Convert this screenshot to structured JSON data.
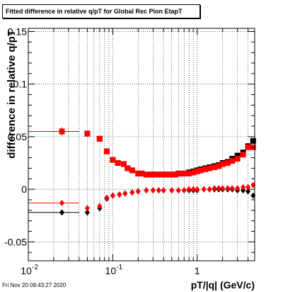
{
  "title": "Fitted difference in relative q/pT for Global Rec Pion EtapT",
  "timestamp": "Fri Nov 20 09:43:27 2020",
  "colors": {
    "black_series": "#000000",
    "red_series": "#ff0000",
    "grid": "#000000"
  },
  "chart_data": {
    "type": "scatter",
    "xlabel": "pT/|q| (GeV/c)",
    "ylabel": "difference in relative q/pT",
    "x_scale": "log",
    "xlim": [
      0.01,
      4.8
    ],
    "ylim": [
      -0.068,
      0.153
    ],
    "grid": true,
    "x_major_ticks": [
      {
        "value": 0.01,
        "label": "10",
        "exp": "-2"
      },
      {
        "value": 0.1,
        "label": "10",
        "exp": "-1"
      },
      {
        "value": 1,
        "label": "1",
        "exp": ""
      }
    ],
    "y_ticks": [
      {
        "value": -0.05,
        "label": "-0.05"
      },
      {
        "value": 0,
        "label": "0"
      },
      {
        "value": 0.05,
        "label": "0.05"
      },
      {
        "value": 0.1,
        "label": "0.1"
      },
      {
        "value": 0.15,
        "label": "0.15"
      }
    ],
    "series": [
      {
        "color": "#000000",
        "marker": "square",
        "points": [
          {
            "x": 0.025,
            "y": 0.055,
            "xlo": 0.01,
            "xhi": 0.04,
            "err": 0.004
          },
          {
            "x": 0.05,
            "y": 0.053
          },
          {
            "x": 0.07,
            "y": 0.048
          },
          {
            "x": 0.085,
            "y": 0.036
          },
          {
            "x": 0.1,
            "y": 0.028
          },
          {
            "x": 0.115,
            "y": 0.025
          },
          {
            "x": 0.135,
            "y": 0.024
          },
          {
            "x": 0.15,
            "y": 0.02
          },
          {
            "x": 0.17,
            "y": 0.018
          },
          {
            "x": 0.2,
            "y": 0.015
          },
          {
            "x": 0.22,
            "y": 0.015
          },
          {
            "x": 0.25,
            "y": 0.014
          },
          {
            "x": 0.28,
            "y": 0.014
          },
          {
            "x": 0.3,
            "y": 0.014
          },
          {
            "x": 0.35,
            "y": 0.014
          },
          {
            "x": 0.4,
            "y": 0.014
          },
          {
            "x": 0.45,
            "y": 0.014
          },
          {
            "x": 0.5,
            "y": 0.014
          },
          {
            "x": 0.55,
            "y": 0.014
          },
          {
            "x": 0.6,
            "y": 0.015
          },
          {
            "x": 0.7,
            "y": 0.015
          },
          {
            "x": 0.8,
            "y": 0.016
          },
          {
            "x": 0.9,
            "y": 0.017
          },
          {
            "x": 1.0,
            "y": 0.018
          },
          {
            "x": 1.1,
            "y": 0.019
          },
          {
            "x": 1.25,
            "y": 0.02
          },
          {
            "x": 1.4,
            "y": 0.021
          },
          {
            "x": 1.6,
            "y": 0.022
          },
          {
            "x": 1.8,
            "y": 0.023
          },
          {
            "x": 2.0,
            "y": 0.025
          },
          {
            "x": 2.3,
            "y": 0.026
          },
          {
            "x": 2.6,
            "y": 0.029
          },
          {
            "x": 3.0,
            "y": 0.032
          },
          {
            "x": 3.5,
            "y": 0.035
          },
          {
            "x": 4.0,
            "y": 0.041
          },
          {
            "x": 4.6,
            "y": 0.046
          }
        ]
      },
      {
        "color": "#ff0000",
        "marker": "square",
        "points": [
          {
            "x": 0.025,
            "y": 0.055,
            "xlo": 0.01,
            "xhi": 0.04,
            "err": 0.004
          },
          {
            "x": 0.05,
            "y": 0.053
          },
          {
            "x": 0.07,
            "y": 0.048
          },
          {
            "x": 0.085,
            "y": 0.036
          },
          {
            "x": 0.1,
            "y": 0.028
          },
          {
            "x": 0.115,
            "y": 0.025
          },
          {
            "x": 0.135,
            "y": 0.024
          },
          {
            "x": 0.15,
            "y": 0.02
          },
          {
            "x": 0.17,
            "y": 0.018
          },
          {
            "x": 0.2,
            "y": 0.015
          },
          {
            "x": 0.22,
            "y": 0.015
          },
          {
            "x": 0.25,
            "y": 0.014
          },
          {
            "x": 0.28,
            "y": 0.014
          },
          {
            "x": 0.3,
            "y": 0.014
          },
          {
            "x": 0.35,
            "y": 0.014
          },
          {
            "x": 0.4,
            "y": 0.014
          },
          {
            "x": 0.45,
            "y": 0.014
          },
          {
            "x": 0.5,
            "y": 0.014
          },
          {
            "x": 0.55,
            "y": 0.014
          },
          {
            "x": 0.6,
            "y": 0.015
          },
          {
            "x": 0.7,
            "y": 0.015
          },
          {
            "x": 0.8,
            "y": 0.015
          },
          {
            "x": 0.9,
            "y": 0.016
          },
          {
            "x": 1.0,
            "y": 0.017
          },
          {
            "x": 1.1,
            "y": 0.018
          },
          {
            "x": 1.25,
            "y": 0.019
          },
          {
            "x": 1.4,
            "y": 0.02
          },
          {
            "x": 1.6,
            "y": 0.021
          },
          {
            "x": 1.8,
            "y": 0.022
          },
          {
            "x": 2.0,
            "y": 0.024
          },
          {
            "x": 2.3,
            "y": 0.025
          },
          {
            "x": 2.6,
            "y": 0.027
          },
          {
            "x": 3.0,
            "y": 0.029
          },
          {
            "x": 3.5,
            "y": 0.033
          },
          {
            "x": 4.0,
            "y": 0.04
          },
          {
            "x": 4.6,
            "y": 0.04
          }
        ]
      },
      {
        "color": "#000000",
        "marker": "diamond",
        "points": [
          {
            "x": 0.025,
            "y": -0.022,
            "xlo": 0.01,
            "xhi": 0.04,
            "err": 0.002
          },
          {
            "x": 0.05,
            "y": -0.022
          },
          {
            "x": 0.07,
            "y": -0.018
          },
          {
            "x": 0.085,
            "y": -0.009
          },
          {
            "x": 0.1,
            "y": -0.006
          },
          {
            "x": 0.12,
            "y": -0.005
          },
          {
            "x": 0.14,
            "y": -0.004
          },
          {
            "x": 0.17,
            "y": -0.003
          },
          {
            "x": 0.2,
            "y": -0.002
          },
          {
            "x": 0.25,
            "y": -0.001
          },
          {
            "x": 0.3,
            "y": -0.001
          },
          {
            "x": 0.35,
            "y": -0.001
          },
          {
            "x": 0.4,
            "y": -0.001
          },
          {
            "x": 0.5,
            "y": -0.001
          },
          {
            "x": 0.6,
            "y": -0.001
          },
          {
            "x": 0.7,
            "y": -0.001
          },
          {
            "x": 0.8,
            "y": -0.001
          },
          {
            "x": 0.9,
            "y": -0.001
          },
          {
            "x": 1.0,
            "y": -0.001
          },
          {
            "x": 1.2,
            "y": 0.0
          },
          {
            "x": 1.4,
            "y": 0.0
          },
          {
            "x": 1.6,
            "y": 0.0
          },
          {
            "x": 1.8,
            "y": 0.0
          },
          {
            "x": 2.0,
            "y": 0.0
          },
          {
            "x": 2.3,
            "y": 0.0
          },
          {
            "x": 2.6,
            "y": 0.0
          },
          {
            "x": 3.0,
            "y": -0.001
          },
          {
            "x": 3.5,
            "y": -0.001
          },
          {
            "x": 4.0,
            "y": -0.002
          },
          {
            "x": 4.6,
            "y": -0.006
          }
        ]
      },
      {
        "color": "#ff0000",
        "marker": "diamond",
        "points": [
          {
            "x": 0.025,
            "y": -0.013,
            "xlo": 0.01,
            "xhi": 0.04,
            "err": 0.002
          },
          {
            "x": 0.05,
            "y": -0.018
          },
          {
            "x": 0.07,
            "y": -0.016
          },
          {
            "x": 0.085,
            "y": -0.008
          },
          {
            "x": 0.1,
            "y": -0.006
          },
          {
            "x": 0.12,
            "y": -0.005
          },
          {
            "x": 0.14,
            "y": -0.004
          },
          {
            "x": 0.17,
            "y": -0.003
          },
          {
            "x": 0.2,
            "y": -0.002
          },
          {
            "x": 0.25,
            "y": -0.001
          },
          {
            "x": 0.3,
            "y": -0.001
          },
          {
            "x": 0.35,
            "y": -0.001
          },
          {
            "x": 0.4,
            "y": -0.001
          },
          {
            "x": 0.5,
            "y": -0.001
          },
          {
            "x": 0.6,
            "y": -0.001
          },
          {
            "x": 0.7,
            "y": -0.001
          },
          {
            "x": 0.8,
            "y": 0.0
          },
          {
            "x": 0.9,
            "y": 0.0
          },
          {
            "x": 1.0,
            "y": 0.0
          },
          {
            "x": 1.2,
            "y": 0.0
          },
          {
            "x": 1.4,
            "y": 0.0
          },
          {
            "x": 1.6,
            "y": 0.001
          },
          {
            "x": 1.8,
            "y": 0.001
          },
          {
            "x": 2.0,
            "y": 0.001
          },
          {
            "x": 2.3,
            "y": 0.001
          },
          {
            "x": 2.6,
            "y": 0.001
          },
          {
            "x": 3.0,
            "y": 0.001
          },
          {
            "x": 3.5,
            "y": 0.002
          },
          {
            "x": 4.0,
            "y": 0.002
          },
          {
            "x": 4.6,
            "y": 0.004
          }
        ]
      }
    ]
  }
}
